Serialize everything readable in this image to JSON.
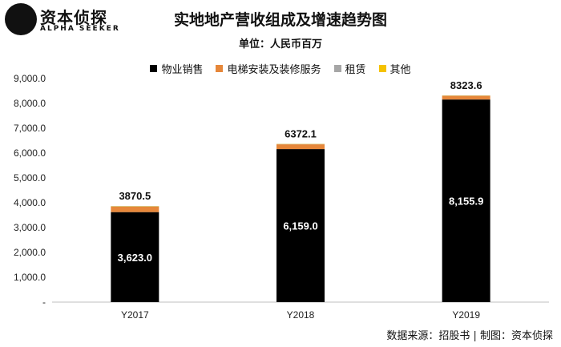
{
  "brand": {
    "name_cn": "资本侦探",
    "name_en": "ALPHA SEEKER"
  },
  "footer": {
    "source": "数据来源：招股书 | 制图：资本侦探"
  },
  "colors": {
    "property_sales": "#000000",
    "elevator": "#e6873a",
    "rent": "#a6a6a6",
    "other": "#f5c200"
  },
  "chart_data": {
    "type": "bar",
    "stacked": true,
    "title": "实地地产营收组成及增速趋势图",
    "subtitle": "单位：人民币百万",
    "categories": [
      "Y2017",
      "Y2018",
      "Y2019"
    ],
    "series": [
      {
        "name": "物业销售",
        "values": [
          3623.0,
          6159.0,
          8155.9
        ]
      },
      {
        "name": "电梯安装及装修服务",
        "values": [
          222.5,
          193.1,
          147.7
        ]
      },
      {
        "name": "租赁",
        "values": [
          15.0,
          12.0,
          12.0
        ]
      },
      {
        "name": "其他",
        "values": [
          10.0,
          8.0,
          8.0
        ]
      }
    ],
    "inner_labels": [
      "3,623.0",
      "6,159.0",
      "8,155.9"
    ],
    "totals": [
      3870.5,
      6372.1,
      8323.6
    ],
    "total_labels": [
      "3870.5",
      "6372.1",
      "8323.6"
    ],
    "ylim": [
      0,
      9000
    ],
    "yticks": [
      0,
      1000,
      2000,
      3000,
      4000,
      5000,
      6000,
      7000,
      8000,
      9000
    ],
    "ytick_labels": [
      "-",
      "1,000.0",
      "2,000.0",
      "3,000.0",
      "4,000.0",
      "5,000.0",
      "6,000.0",
      "7,000.0",
      "8,000.0",
      "9,000.0"
    ],
    "legend_position": "top",
    "grid": false
  }
}
